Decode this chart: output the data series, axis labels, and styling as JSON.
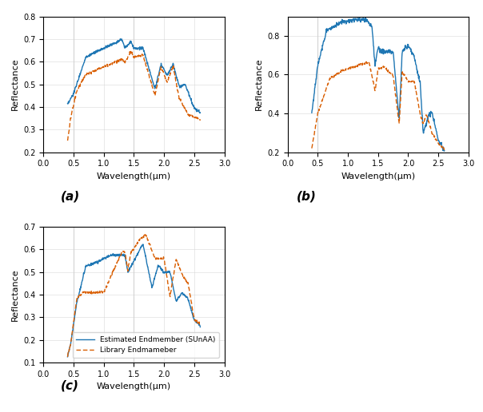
{
  "blue_color": "#1f77b4",
  "orange_color": "#d95f02",
  "xlabel": "Wavelength(μm)",
  "ylabel": "Reflectance",
  "xlim": [
    0,
    3
  ],
  "xticks": [
    0,
    0.5,
    1,
    1.5,
    2,
    2.5,
    3
  ],
  "subplot_labels": [
    "(a)",
    "(b)",
    "(c)"
  ],
  "legend_estimated": "Estimated Endmember (SUnAA)",
  "legend_library": "Library Endmameber",
  "subplot_a": {
    "ylim": [
      0.2,
      0.8
    ],
    "yticks": [
      0.2,
      0.3,
      0.4,
      0.5,
      0.6,
      0.7,
      0.8
    ],
    "vlines": [
      0.5,
      1.5
    ]
  },
  "subplot_b": {
    "ylim": [
      0.2,
      0.9
    ],
    "yticks": [
      0.2,
      0.4,
      0.6,
      0.8
    ],
    "vlines": [
      0.5
    ]
  },
  "subplot_c": {
    "ylim": [
      0.1,
      0.7
    ],
    "yticks": [
      0.1,
      0.2,
      0.3,
      0.4,
      0.5,
      0.6,
      0.7
    ],
    "vlines": [
      0.5,
      1.5
    ]
  }
}
